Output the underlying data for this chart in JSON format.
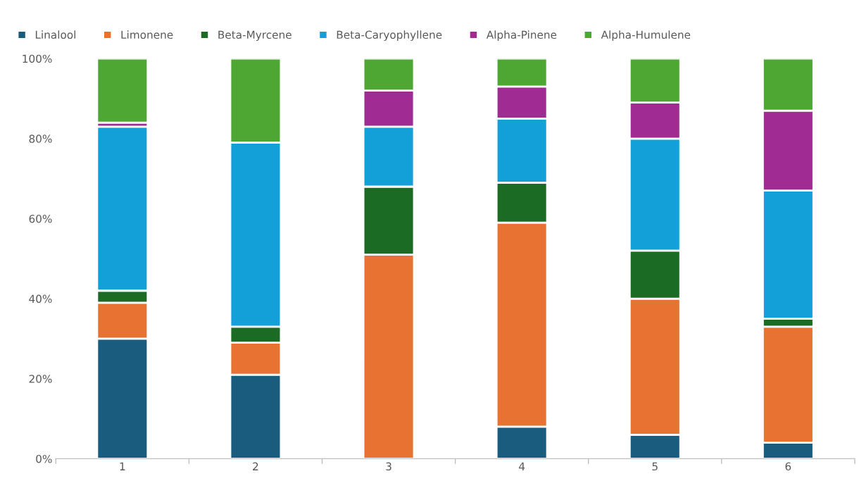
{
  "chart_data": {
    "type": "bar",
    "stacked": true,
    "categories": [
      "1",
      "2",
      "3",
      "4",
      "5",
      "6"
    ],
    "series": [
      {
        "name": "Linalool",
        "color": "#1a5c7e",
        "values": [
          30,
          21,
          0,
          8,
          6,
          4
        ]
      },
      {
        "name": "Limonene",
        "color": "#e87232",
        "values": [
          9,
          8,
          51,
          51,
          34,
          29
        ]
      },
      {
        "name": "Beta-Myrcene",
        "color": "#1c6b24",
        "values": [
          3,
          4,
          17,
          10,
          12,
          2
        ]
      },
      {
        "name": "Beta-Caryophyllene",
        "color": "#139fd8",
        "values": [
          41,
          46,
          15,
          16,
          28,
          32
        ]
      },
      {
        "name": "Alpha-Pinene",
        "color": "#a02b91",
        "values": [
          1,
          0,
          9,
          8,
          9,
          20
        ]
      },
      {
        "name": "Alpha-Humulene",
        "color": "#4ea733",
        "values": [
          16,
          21,
          8,
          7,
          11,
          13
        ]
      }
    ],
    "ylim": [
      0,
      100
    ],
    "yticks": [
      {
        "value": 0,
        "label": "0%"
      },
      {
        "value": 20,
        "label": "20%"
      },
      {
        "value": 40,
        "label": "40%"
      },
      {
        "value": 60,
        "label": "60%"
      },
      {
        "value": 80,
        "label": "80%"
      },
      {
        "value": 100,
        "label": "100%"
      }
    ],
    "grid": false,
    "legend": "top"
  }
}
